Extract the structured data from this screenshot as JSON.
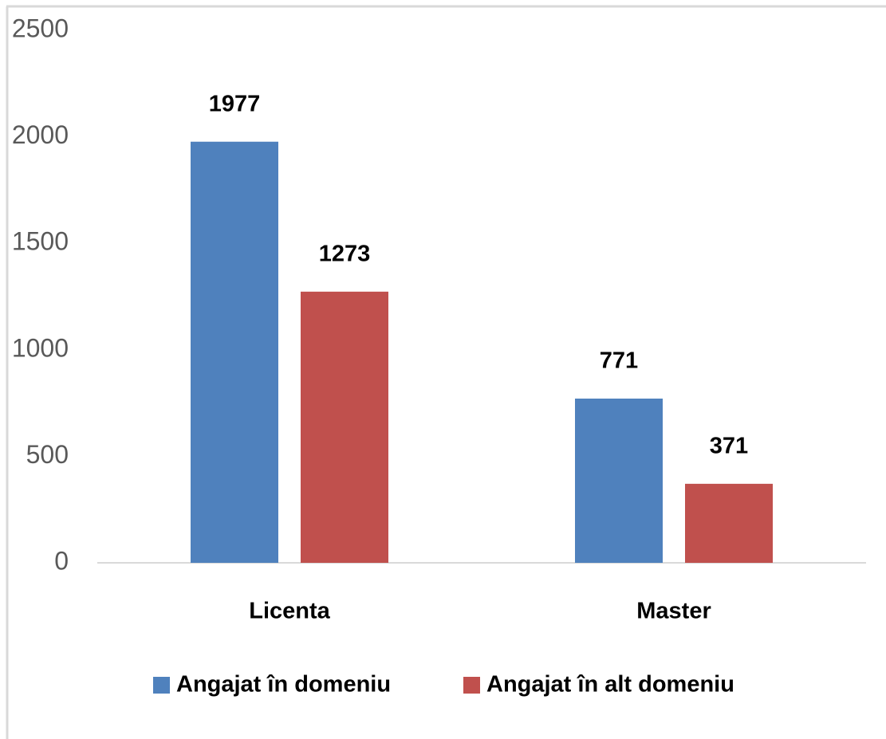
{
  "chart_data": {
    "type": "bar",
    "categories": [
      "Licenta",
      "Master"
    ],
    "series": [
      {
        "name": "Angajat în domeniu",
        "color": "#4f81bd",
        "values": [
          1977,
          771
        ]
      },
      {
        "name": "Angajat în alt domeniu",
        "color": "#c0504d",
        "values": [
          1273,
          371
        ]
      }
    ],
    "ylim": [
      0,
      2500
    ],
    "yticks": [
      0,
      500,
      1000,
      1500,
      2000,
      2500
    ],
    "legend": "bottom",
    "grid": false
  }
}
